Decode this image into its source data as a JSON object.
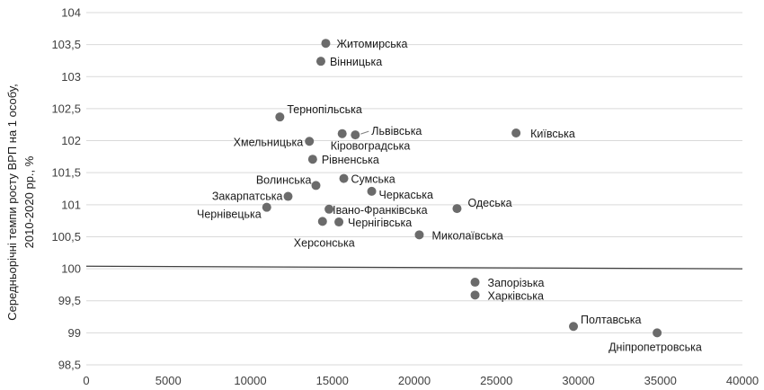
{
  "chart_data": {
    "type": "scatter",
    "ylabel_lines": [
      "Середньорічні темпи росту ВРП на 1 особу,",
      "2010-2020 рр., %"
    ],
    "xlim": [
      0,
      40000
    ],
    "ylim": [
      98.5,
      104
    ],
    "xticks": [
      0,
      5000,
      10000,
      15000,
      20000,
      25000,
      30000,
      35000,
      40000
    ],
    "xtick_labels": [
      "0",
      "5000",
      "10000",
      "15000",
      "20000",
      "25000",
      "30000",
      "35000",
      "40000"
    ],
    "yticks": [
      98.5,
      99,
      99.5,
      100,
      100.5,
      101,
      101.5,
      102,
      102.5,
      103,
      103.5,
      104
    ],
    "ytick_labels": [
      "98,5",
      "99",
      "99,5",
      "100",
      "100,5",
      "101",
      "101,5",
      "102",
      "102,5",
      "103",
      "103,5",
      "104"
    ],
    "grid": true,
    "reference_line": {
      "y0": 100.04,
      "y1": 100.0
    },
    "points": [
      {
        "label": "Житомирська",
        "x": 14600,
        "y": 103.52
      },
      {
        "label": "Вінницька",
        "x": 14300,
        "y": 103.24
      },
      {
        "label": "Тернопільська",
        "x": 11800,
        "y": 102.37
      },
      {
        "label": "Львівська",
        "x": 16400,
        "y": 102.09
      },
      {
        "label": "Київська",
        "x": 26200,
        "y": 102.12
      },
      {
        "label": "Хмельницька",
        "x": 13600,
        "y": 101.99
      },
      {
        "label": "Кіровоградська",
        "x": 15600,
        "y": 102.11
      },
      {
        "label": "Рівненська",
        "x": 13800,
        "y": 101.71
      },
      {
        "label": "Сумська",
        "x": 15700,
        "y": 101.41
      },
      {
        "label": "Волинська",
        "x": 14000,
        "y": 101.3
      },
      {
        "label": "Черкаська",
        "x": 17400,
        "y": 101.21
      },
      {
        "label": "Закарпатська",
        "x": 12300,
        "y": 101.13
      },
      {
        "label": "Одеська",
        "x": 22600,
        "y": 100.94
      },
      {
        "label": "Чернівецька",
        "x": 11000,
        "y": 100.96
      },
      {
        "label": "Івано-Франківська",
        "x": 14800,
        "y": 100.93
      },
      {
        "label": "Чернігівська",
        "x": 15400,
        "y": 100.73
      },
      {
        "label": "Херсонська",
        "x": 14400,
        "y": 100.74
      },
      {
        "label": "Миколаївська",
        "x": 20300,
        "y": 100.53
      },
      {
        "label": "Запорізька",
        "x": 23700,
        "y": 99.79
      },
      {
        "label": "Харківська",
        "x": 23700,
        "y": 99.59
      },
      {
        "label": "Полтавська",
        "x": 29700,
        "y": 99.1
      },
      {
        "label": "Дніпропетровська",
        "x": 34800,
        "y": 99.0
      }
    ]
  }
}
